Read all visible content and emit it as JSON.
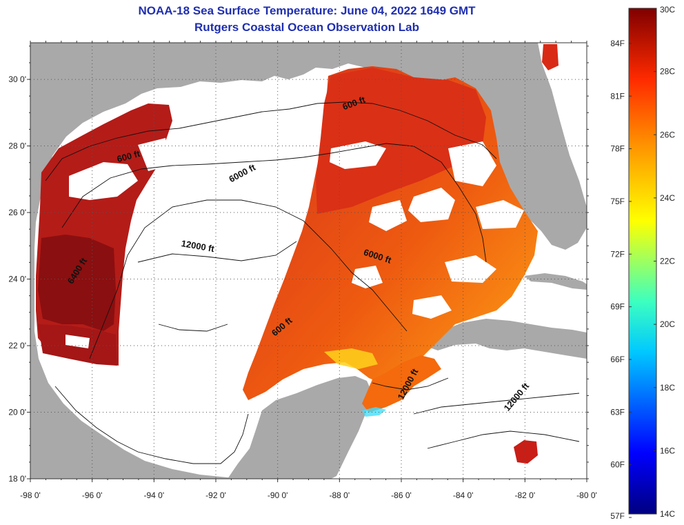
{
  "title": "NOAA-18 Sea Surface Temperature:  June 04, 2022 1649 GMT",
  "subtitle": "Rutgers Coastal Ocean Observation Lab",
  "lat_ticks": [
    {
      "deg": 30,
      "label": "30 0'"
    },
    {
      "deg": 28,
      "label": "28 0'"
    },
    {
      "deg": 26,
      "label": "26 0'"
    },
    {
      "deg": 24,
      "label": "24 0'"
    },
    {
      "deg": 22,
      "label": "22 0'"
    },
    {
      "deg": 20,
      "label": "20 0'"
    },
    {
      "deg": 18,
      "label": "18 0'"
    }
  ],
  "lon_ticks": [
    {
      "deg": -98,
      "label": "-98 0'"
    },
    {
      "deg": -96,
      "label": "-96 0'"
    },
    {
      "deg": -94,
      "label": "-94 0'"
    },
    {
      "deg": -92,
      "label": "-92 0'"
    },
    {
      "deg": -90,
      "label": "-90 0'"
    },
    {
      "deg": -88,
      "label": "-88 0'"
    },
    {
      "deg": -86,
      "label": "-86 0'"
    },
    {
      "deg": -84,
      "label": "-84 0'"
    },
    {
      "deg": -82,
      "label": "-82 0'"
    },
    {
      "deg": -80,
      "label": "-80 0'"
    }
  ],
  "contour_labels": [
    {
      "text": "600 ft",
      "lon": -94.8,
      "lat": 27.6,
      "angle": -15
    },
    {
      "text": "6000 ft",
      "lon": -91.1,
      "lat": 27.1,
      "angle": -28
    },
    {
      "text": "600 ft",
      "lon": -87.5,
      "lat": 29.2,
      "angle": -20
    },
    {
      "text": "12000 ft",
      "lon": -92.6,
      "lat": 24.9,
      "angle": 10
    },
    {
      "text": "6400 ft",
      "lon": -96.4,
      "lat": 24.2,
      "angle": -58
    },
    {
      "text": "6000 ft",
      "lon": -86.8,
      "lat": 24.6,
      "angle": 18
    },
    {
      "text": "600 ft",
      "lon": -89.8,
      "lat": 22.5,
      "angle": -40
    },
    {
      "text": "12000 ft",
      "lon": -85.7,
      "lat": 20.8,
      "angle": -62
    },
    {
      "text": "12000 ft",
      "lon": -82.2,
      "lat": 20.4,
      "angle": -50
    }
  ],
  "colorbar": {
    "celsius": [
      {
        "v": 30,
        "label": "30C"
      },
      {
        "v": 28,
        "label": "28C"
      },
      {
        "v": 26,
        "label": "26C"
      },
      {
        "v": 24,
        "label": "24C"
      },
      {
        "v": 22,
        "label": "22C"
      },
      {
        "v": 20,
        "label": "20C"
      },
      {
        "v": 18,
        "label": "18C"
      },
      {
        "v": 16,
        "label": "16C"
      },
      {
        "v": 14,
        "label": "14C"
      }
    ],
    "fahrenheit": [
      {
        "v": 84,
        "label": "84F"
      },
      {
        "v": 81,
        "label": "81F"
      },
      {
        "v": 78,
        "label": "78F"
      },
      {
        "v": 75,
        "label": "75F"
      },
      {
        "v": 72,
        "label": "72F"
      },
      {
        "v": 69,
        "label": "69F"
      },
      {
        "v": 66,
        "label": "66F"
      },
      {
        "v": 63,
        "label": "63F"
      },
      {
        "v": 60,
        "label": "60F"
      },
      {
        "v": 57,
        "label": "57F"
      }
    ]
  },
  "colors": {
    "land": "#a9a9a9",
    "cloud": "#ffffff",
    "title": "#1f2fb0",
    "warm": "#d42a10",
    "hot": "#8e1010",
    "mid": "#f25a0a",
    "cool": "#ffa20a"
  }
}
